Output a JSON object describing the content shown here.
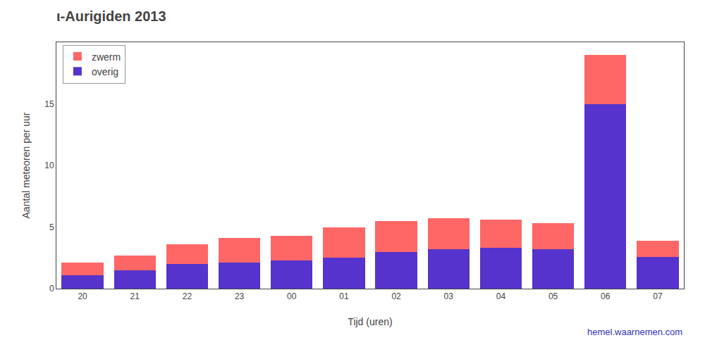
{
  "chart_data": {
    "type": "bar",
    "stacked": true,
    "title": "ι-Aurigiden 2013",
    "x_label": "Tijd (uren)",
    "y_label": "Aantal meteoren per uur",
    "categories": [
      "20",
      "21",
      "22",
      "23",
      "00",
      "01",
      "02",
      "03",
      "04",
      "05",
      "06",
      "07"
    ],
    "series": [
      {
        "name": "overig",
        "color": "#5533CC",
        "values": [
          1.1,
          1.5,
          2.0,
          2.1,
          2.3,
          2.5,
          3.0,
          3.2,
          3.3,
          3.2,
          15.0,
          2.6
        ]
      },
      {
        "name": "zwerm",
        "color": "#FF6666",
        "values": [
          1.0,
          1.2,
          1.6,
          2.0,
          2.0,
          2.5,
          2.5,
          2.5,
          2.3,
          2.1,
          4.0,
          1.3
        ]
      }
    ],
    "ylim": [
      0,
      20
    ],
    "yticks": [
      0,
      5,
      10,
      15
    ],
    "grid": false,
    "legend": "upper left",
    "annotations": [
      {
        "text": "hemel.waarnemen.com",
        "color": "#3333BB"
      }
    ]
  }
}
